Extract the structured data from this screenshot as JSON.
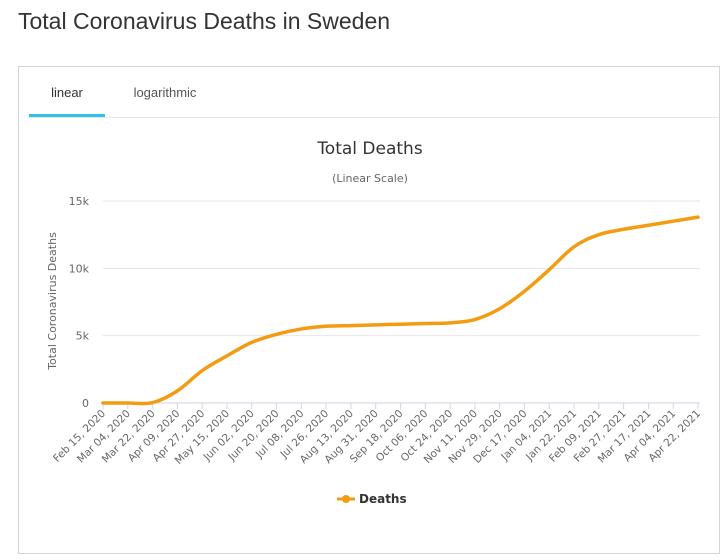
{
  "page": {
    "title": "Total Coronavirus Deaths in Sweden"
  },
  "tabs": [
    {
      "label": "linear",
      "active": true
    },
    {
      "label": "logarithmic",
      "active": false
    }
  ],
  "colors": {
    "series": "#f39c12",
    "tab_active": "#2fc2ef",
    "grid": "#e6e6e6"
  },
  "chart_data": {
    "type": "line",
    "title": "Total Deaths",
    "subtitle": "(Linear Scale)",
    "ylabel": "Total Coronavirus Deaths",
    "xlabel": "",
    "ylim": [
      0,
      15000
    ],
    "yticks": [
      {
        "value": 0,
        "label": "0"
      },
      {
        "value": 5000,
        "label": "5k"
      },
      {
        "value": 10000,
        "label": "10k"
      },
      {
        "value": 15000,
        "label": "15k"
      }
    ],
    "grid": true,
    "legend_position": "bottom-center",
    "categories": [
      "Feb 15, 2020",
      "Mar 04, 2020",
      "Mar 22, 2020",
      "Apr 09, 2020",
      "Apr 27, 2020",
      "May 15, 2020",
      "Jun 02, 2020",
      "Jun 20, 2020",
      "Jul 08, 2020",
      "Jul 26, 2020",
      "Aug 13, 2020",
      "Aug 31, 2020",
      "Sep 18, 2020",
      "Oct 06, 2020",
      "Oct 24, 2020",
      "Nov 11, 2020",
      "Nov 29, 2020",
      "Dec 17, 2020",
      "Jan 04, 2021",
      "Jan 22, 2021",
      "Feb 09, 2021",
      "Feb 27, 2021",
      "Mar 17, 2021",
      "Apr 04, 2021",
      "Apr 22, 2021"
    ],
    "series": [
      {
        "name": "Deaths",
        "color": "#f39c12",
        "values": [
          0,
          0,
          30,
          900,
          2400,
          3500,
          4500,
          5100,
          5500,
          5700,
          5750,
          5800,
          5850,
          5900,
          5950,
          6200,
          7000,
          8300,
          9900,
          11600,
          12500,
          12900,
          13200,
          13500,
          13800
        ]
      }
    ]
  }
}
